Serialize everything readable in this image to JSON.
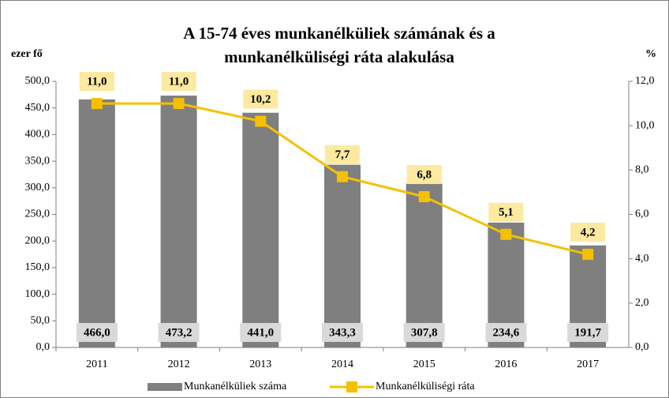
{
  "chart_data": {
    "type": "bar_line",
    "title": [
      "A 15-74 éves munkanélküliek számának és a",
      "munkanélküliségi ráta alakulása"
    ],
    "y_label": "ezer fő",
    "y2_label": "%",
    "categories": [
      "2011",
      "2012",
      "2013",
      "2014",
      "2015",
      "2016",
      "2017"
    ],
    "series": [
      {
        "name": "Munkanélküliek száma",
        "type": "bar",
        "color": "#7f7f7f",
        "axis": "y",
        "values": [
          466.0,
          473.2,
          441.0,
          343.3,
          307.8,
          234.6,
          191.7
        ],
        "value_labels": [
          "466,0",
          "473,2",
          "441,0",
          "343,3",
          "307,8",
          "234,6",
          "191,7"
        ]
      },
      {
        "name": "Munkanélküliségi ráta",
        "type": "line",
        "color": "#f5c000",
        "axis": "y2",
        "values": [
          11.0,
          11.0,
          10.2,
          7.7,
          6.8,
          5.1,
          4.2
        ],
        "value_labels": [
          "11,0",
          "11,0",
          "10,2",
          "7,7",
          "6,8",
          "5,1",
          "4,2"
        ]
      }
    ],
    "ylim": [
      0,
      500
    ],
    "yticks": [
      {
        "value": 0,
        "label": "0,0"
      },
      {
        "value": 50,
        "label": "50,0"
      },
      {
        "value": 100,
        "label": "100,0"
      },
      {
        "value": 150,
        "label": "150,0"
      },
      {
        "value": 200,
        "label": "200,0"
      },
      {
        "value": 250,
        "label": "250,0"
      },
      {
        "value": 300,
        "label": "300,0"
      },
      {
        "value": 350,
        "label": "350,0"
      },
      {
        "value": 400,
        "label": "400,0"
      },
      {
        "value": 450,
        "label": "450,0"
      },
      {
        "value": 500,
        "label": "500,0"
      }
    ],
    "y2lim": [
      0,
      12
    ],
    "y2ticks": [
      {
        "value": 0,
        "label": "0,0"
      },
      {
        "value": 2,
        "label": "2,0"
      },
      {
        "value": 4,
        "label": "4,0"
      },
      {
        "value": 6,
        "label": "6,0"
      },
      {
        "value": 8,
        "label": "8,0"
      },
      {
        "value": 10,
        "label": "10,0"
      },
      {
        "value": 12,
        "label": "12,0"
      }
    ],
    "legend": "bottom"
  }
}
